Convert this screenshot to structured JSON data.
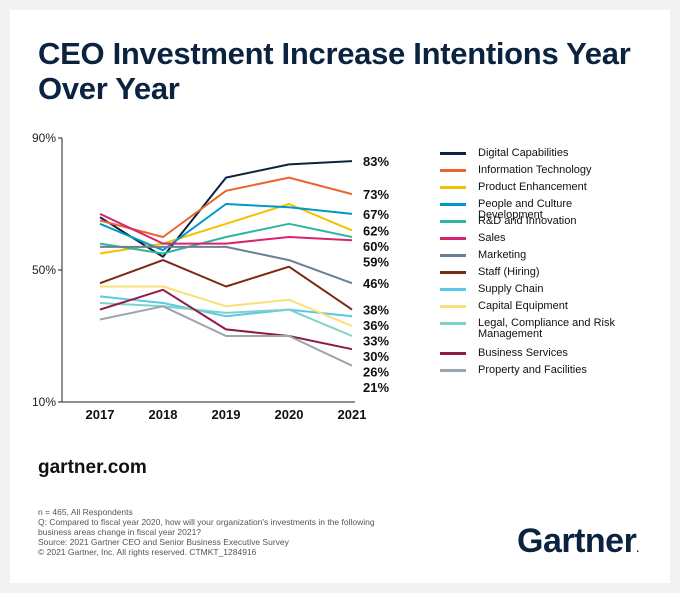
{
  "header": {
    "title": "CEO Investment Increase Intentions Year Over Year"
  },
  "chart_data": {
    "type": "line",
    "title": "CEO Investment Increase Intentions Year Over Year",
    "x": [
      "2017",
      "2018",
      "2019",
      "2020",
      "2021"
    ],
    "yticks": [
      "90%",
      "50%",
      "10%"
    ],
    "ylim": [
      10,
      90
    ],
    "grid": false,
    "legend_position": "right",
    "series": [
      {
        "name": "Digital Capabilities",
        "color": "#0c2340",
        "values": [
          66,
          54,
          78,
          82,
          83
        ],
        "end_label": "83%"
      },
      {
        "name": "Information Technology",
        "color": "#e8662c",
        "values": [
          65,
          60,
          74,
          78,
          73
        ],
        "end_label": "73%"
      },
      {
        "name": "Product Enhancement",
        "color": "#f5c000",
        "values": [
          55,
          58,
          64,
          70,
          62
        ],
        "end_label": "62%"
      },
      {
        "name": "People and Culture Development",
        "color": "#0098c8",
        "values": [
          64,
          56,
          70,
          69,
          67
        ],
        "end_label": "67%"
      },
      {
        "name": "R&D and Innovation",
        "color": "#2fb5a1",
        "values": [
          58,
          55,
          60,
          64,
          60
        ],
        "end_label": "60%"
      },
      {
        "name": "Sales",
        "color": "#d6246e",
        "values": [
          67,
          58,
          58,
          60,
          59
        ],
        "end_label": "59%"
      },
      {
        "name": "Marketing",
        "color": "#6d7f92",
        "values": [
          57,
          57,
          57,
          53,
          46
        ],
        "end_label": "46%"
      },
      {
        "name": "Staff (Hiring)",
        "color": "#7a2a14",
        "values": [
          46,
          53,
          45,
          51,
          38
        ],
        "end_label": "38%"
      },
      {
        "name": "Supply Chain",
        "color": "#5bc8ea",
        "values": [
          42,
          40,
          36,
          38,
          36
        ],
        "end_label": "36%"
      },
      {
        "name": "Capital Equipment",
        "color": "#f8df7a",
        "values": [
          45,
          45,
          39,
          41,
          33
        ],
        "end_label": "33%"
      },
      {
        "name": "Legal, Compliance and Risk Management",
        "color": "#7fd1c7",
        "values": [
          40,
          39,
          37,
          38,
          30
        ],
        "end_label": "30%"
      },
      {
        "name": "Business Services",
        "color": "#8e1b45",
        "values": [
          38,
          44,
          32,
          30,
          26
        ],
        "end_label": "26%"
      },
      {
        "name": "Property and Facilities",
        "color": "#9aa5ae",
        "values": [
          35,
          39,
          30,
          30,
          21
        ],
        "end_label": "21%"
      }
    ]
  },
  "legend": {
    "items": [
      {
        "label": "Digital Capabilities"
      },
      {
        "label": "Information Technology"
      },
      {
        "label": "Product Enhancement"
      },
      {
        "label": "People and Culture Development"
      },
      {
        "label": "R&D and Innovation"
      },
      {
        "label": "Sales"
      },
      {
        "label": "Marketing"
      },
      {
        "label": "Staff (Hiring)"
      },
      {
        "label": "Supply Chain"
      },
      {
        "label": "Capital Equipment"
      },
      {
        "label": "Legal, Compliance and Risk Management"
      },
      {
        "label": "Business Services"
      },
      {
        "label": "Property and Facilities"
      }
    ]
  },
  "footer": {
    "url": "gartner.com",
    "note_n": "n = 465, All Respondents",
    "note_q": "Q: Compared to fiscal year 2020, how will your organization's investments in the following business areas change in fiscal year 2021?",
    "note_source": "Source: 2021 Gartner CEO and Senior Business Executive Survey",
    "note_copyright": "© 2021 Gartner, Inc. All rights reserved. CTMKT_1284916",
    "logo_text": "Gartner",
    "logo_mark": "."
  }
}
